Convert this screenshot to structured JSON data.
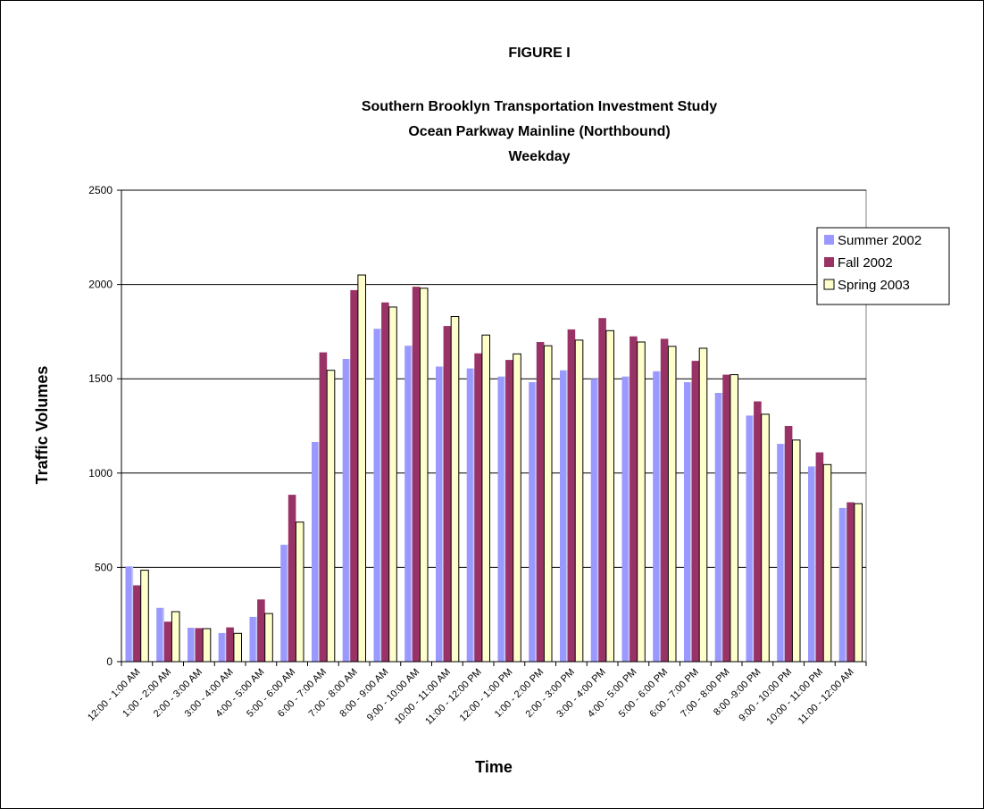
{
  "figure_label": "FIGURE I",
  "chart_data": {
    "type": "bar",
    "title": "Southern Brooklyn Transportation Investment Study",
    "subtitle_1": "Ocean Parkway Mainline (Northbound)",
    "subtitle_2": "Weekday",
    "xlabel": "Time",
    "ylabel": "Traffic Volumes",
    "ylim": [
      0,
      2500
    ],
    "yticks": [
      0,
      500,
      1000,
      1500,
      2000,
      2500
    ],
    "grid": true,
    "legend_position": "right",
    "categories": [
      "12:00 - 1:00 AM",
      "1:00 - 2:00 AM",
      "2:00 - 3:00 AM",
      "3:00 - 4:00 AM",
      "4:00 - 5:00 AM",
      "5:00 - 6:00 AM",
      "6:00 - 7:00 AM",
      "7:00 - 8:00 AM",
      "8:00 - 9:00 AM",
      "9:00 - 10:00 AM",
      "10:00 - 11:00 AM",
      "11:00 - 12:00 PM",
      "12:00 - 1:00 PM",
      "1:00 - 2:00 PM",
      "2:00 - 3:00 PM",
      "3:00 - 4:00 PM",
      "4:00 - 5:00 PM",
      "5:00 - 6:00 PM",
      "6:00 - 7:00 PM",
      "7:00 - 8:00 PM",
      "8:00 -9:00 PM",
      "9:00 - 10:00 PM",
      "10:00 - 11:00 PM",
      "11:00 - 12:00 AM"
    ],
    "series": [
      {
        "name": "Summer 2002",
        "color": "#9999ff",
        "values": [
          505,
          285,
          180,
          152,
          237,
          620,
          1165,
          1605,
          1765,
          1675,
          1565,
          1555,
          1512,
          1482,
          1545,
          1500,
          1512,
          1540,
          1482,
          1425,
          1305,
          1155,
          1035,
          815
        ]
      },
      {
        "name": "Fall 2002",
        "color": "#993366",
        "values": [
          405,
          212,
          178,
          182,
          330,
          885,
          1640,
          1970,
          1905,
          1988,
          1780,
          1635,
          1600,
          1695,
          1762,
          1822,
          1725,
          1712,
          1595,
          1522,
          1380,
          1250,
          1110,
          845
        ]
      },
      {
        "name": "Spring 2003",
        "color": "#ffffcc",
        "values": [
          485,
          265,
          175,
          150,
          255,
          740,
          1545,
          2050,
          1880,
          1980,
          1830,
          1732,
          1632,
          1675,
          1705,
          1755,
          1695,
          1672,
          1662,
          1522,
          1312,
          1175,
          1045,
          838
        ]
      }
    ]
  }
}
